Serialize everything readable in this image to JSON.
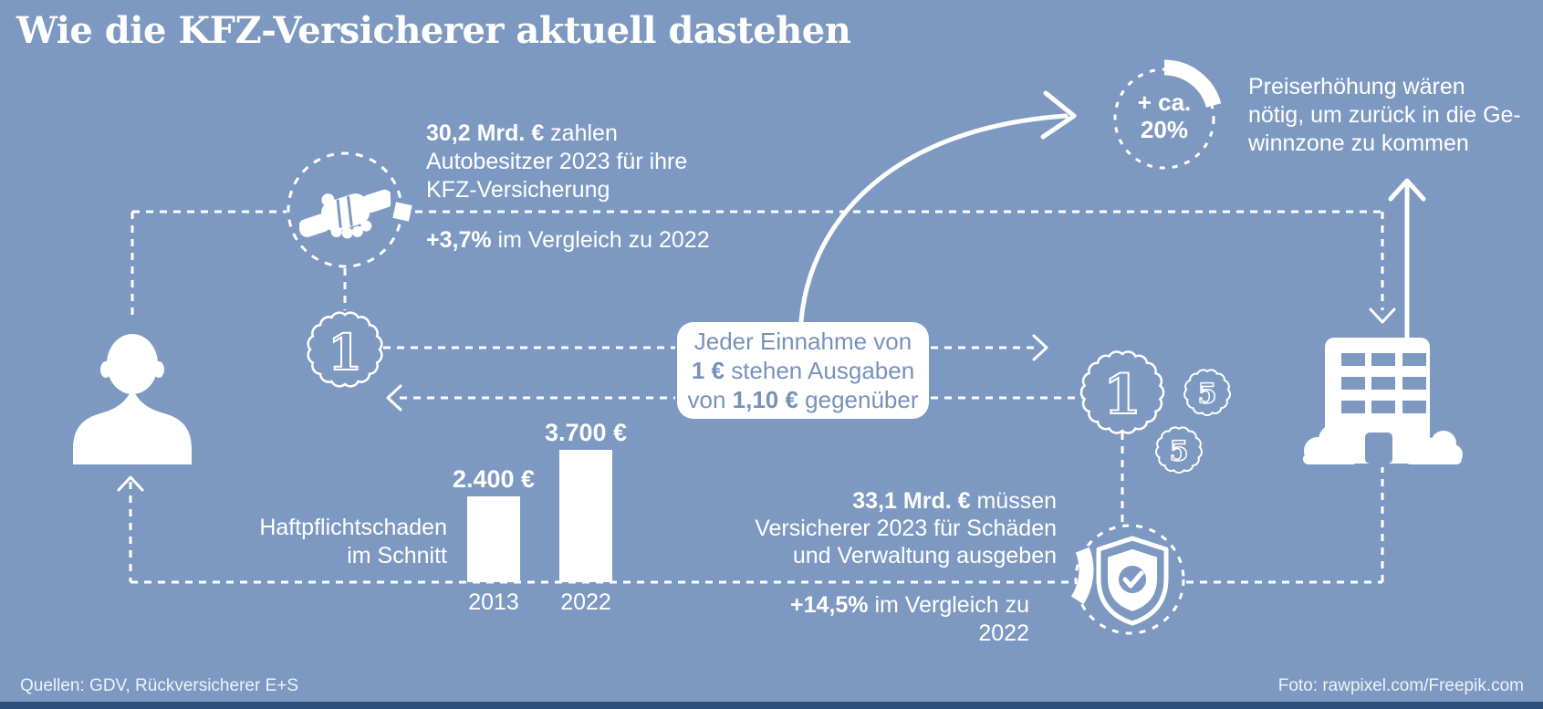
{
  "title": "Wie die KFZ-Versicherer aktuell dastehen",
  "colors": {
    "background": "#7d99c1",
    "white": "#ffffff",
    "box_text": "#7692bc",
    "footer_bar": "#2d4d7a"
  },
  "premium": {
    "amount_bold": "30,2 Mrd. €",
    "amount_rest": " zahlen",
    "line2": "Autobesitzer 2023 für ihre",
    "line3": "KFZ-Versicherung",
    "comparison_bold": "+3,7%",
    "comparison_rest": " im Vergleich zu 2022"
  },
  "claims": {
    "amount_bold": "33,1 Mrd. €",
    "amount_rest": " müssen",
    "line2": "Versicherer 2023 für Schäden",
    "line3": "und Verwaltung ausgeben",
    "comparison_bold": "+14,5%",
    "comparison_rest": " im Vergleich zu 2022"
  },
  "ratio_box": {
    "line1": "Jeder Einnahme von",
    "line2_bold": "1 €",
    "line2_rest": " stehen Ausgaben",
    "line3_pre": "von ",
    "line3_bold": "1,10 €",
    "line3_rest": " gegenüber"
  },
  "price_increase": {
    "badge_line1": "+ ca.",
    "badge_line2": "20%",
    "note_line1": "Preiserhöhung wären",
    "note_line2": "nötig, um zurück in die Ge-",
    "note_line3": "winnzone zu kommen"
  },
  "chart_data": {
    "type": "bar",
    "title_line1": "Haftpflichtschaden",
    "title_line2": "im Schnitt",
    "categories": [
      "2013",
      "2022"
    ],
    "values": [
      2400,
      3700
    ],
    "value_labels": [
      "2.400 €",
      "3.700 €"
    ],
    "ylim": [
      0,
      3700
    ],
    "grid": false
  },
  "coins": {
    "large_value": "1",
    "small_value": "5"
  },
  "footer": {
    "sources": "Quellen: GDV, Rückversicherer E+S",
    "photo": "Foto: rawpixel.com/Freepik.com"
  }
}
